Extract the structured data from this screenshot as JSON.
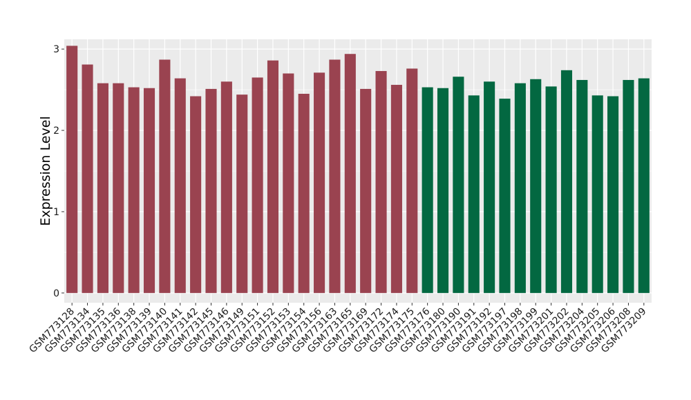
{
  "chart_data": {
    "type": "bar",
    "title": "",
    "xlabel": "",
    "ylabel": "Expression Level",
    "ylim": [
      -0.12,
      3.12
    ],
    "yticks": [
      0,
      1,
      2,
      3
    ],
    "ytick_labels": [
      "0",
      "1",
      "2",
      "3"
    ],
    "grid": true,
    "legend": "none",
    "panel_background": "#ebebeb",
    "gridline_color": "#ffffff",
    "categories": [
      "GSM773128",
      "GSM773134",
      "GSM773135",
      "GSM773136",
      "GSM773138",
      "GSM773139",
      "GSM773140",
      "GSM773141",
      "GSM773142",
      "GSM773145",
      "GSM773146",
      "GSM773149",
      "GSM773151",
      "GSM773152",
      "GSM773153",
      "GSM773154",
      "GSM773156",
      "GSM773163",
      "GSM773165",
      "GSM773169",
      "GSM773172",
      "GSM773174",
      "GSM773175",
      "GSM773176",
      "GSM773180",
      "GSM773190",
      "GSM773191",
      "GSM773192",
      "GSM773197",
      "GSM773198",
      "GSM773199",
      "GSM773201",
      "GSM773202",
      "GSM773204",
      "GSM773205",
      "GSM773206",
      "GSM773208",
      "GSM773209"
    ],
    "values": [
      3.04,
      2.81,
      2.58,
      2.58,
      2.53,
      2.52,
      2.87,
      2.64,
      2.42,
      2.51,
      2.6,
      2.44,
      2.65,
      2.86,
      2.7,
      2.45,
      2.71,
      2.87,
      2.94,
      2.51,
      2.73,
      2.56,
      2.76,
      2.53,
      2.52,
      2.66,
      2.43,
      2.6,
      2.39,
      2.58,
      2.63,
      2.54,
      2.74,
      2.62,
      2.43,
      2.42,
      2.62,
      2.64
    ],
    "bar_colors": [
      "#9a4350",
      "#9a4350",
      "#9a4350",
      "#9a4350",
      "#9a4350",
      "#9a4350",
      "#9a4350",
      "#9a4350",
      "#9a4350",
      "#9a4350",
      "#9a4350",
      "#9a4350",
      "#9a4350",
      "#9a4350",
      "#9a4350",
      "#9a4350",
      "#9a4350",
      "#9a4350",
      "#9a4350",
      "#9a4350",
      "#9a4350",
      "#9a4350",
      "#9a4350",
      "#036841",
      "#036841",
      "#036841",
      "#036841",
      "#036841",
      "#036841",
      "#036841",
      "#036841",
      "#036841",
      "#036841",
      "#036841",
      "#036841",
      "#036841",
      "#036841",
      "#036841"
    ]
  }
}
